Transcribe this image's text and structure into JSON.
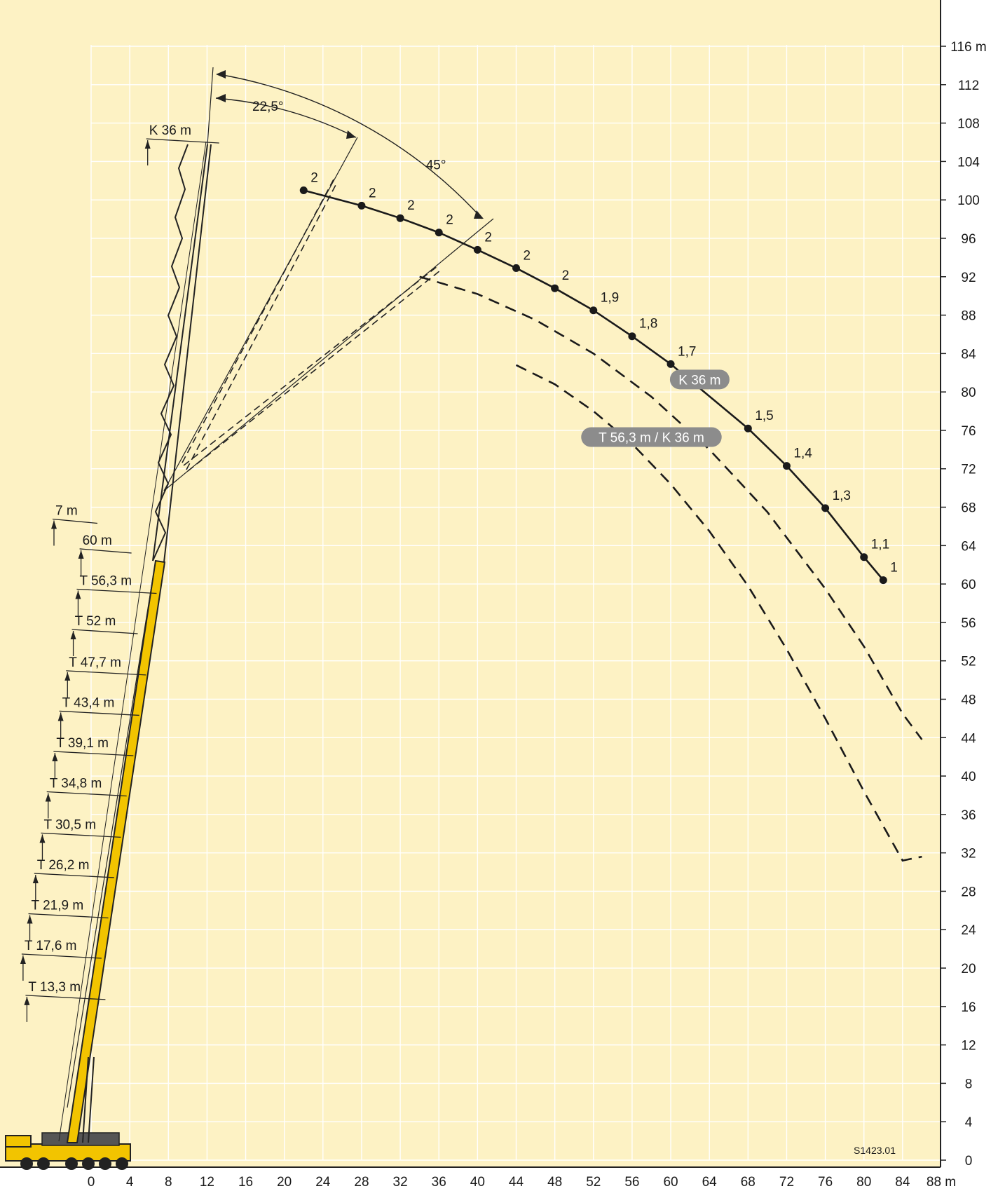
{
  "chart_data": {
    "type": "line",
    "title": "",
    "xlabel": "",
    "ylabel": "",
    "x_unit": "m",
    "y_unit": "m",
    "xlim": [
      0,
      88
    ],
    "ylim": [
      0,
      116
    ],
    "x_ticks": [
      0,
      4,
      8,
      12,
      16,
      20,
      24,
      28,
      32,
      36,
      40,
      44,
      48,
      52,
      56,
      60,
      64,
      68,
      72,
      76,
      80,
      84,
      88
    ],
    "y_ticks": [
      0,
      4,
      8,
      12,
      16,
      20,
      24,
      28,
      32,
      36,
      40,
      44,
      48,
      52,
      56,
      60,
      64,
      68,
      72,
      76,
      80,
      84,
      88,
      92,
      96,
      100,
      104,
      108,
      112,
      116
    ],
    "x_tick_labels": [
      "0",
      "4",
      "8",
      "12",
      "16",
      "20",
      "24",
      "28",
      "32",
      "36",
      "40",
      "44",
      "48",
      "52",
      "56",
      "60",
      "64",
      "68",
      "72",
      "76",
      "80",
      "84",
      "88 m"
    ],
    "y_tick_labels": [
      "0",
      "4",
      "8",
      "12",
      "16",
      "20",
      "24",
      "28",
      "32",
      "36",
      "40",
      "44",
      "48",
      "52",
      "56",
      "60",
      "64",
      "68",
      "72",
      "76",
      "80",
      "84",
      "88",
      "92",
      "96",
      "100",
      "104",
      "108",
      "112",
      "116 m"
    ],
    "grid": true,
    "background_color": "#fdf2c4",
    "series": [
      {
        "name": "K 36 m",
        "style": "solid",
        "points": [
          {
            "x": 22,
            "y": 101,
            "label": "2"
          },
          {
            "x": 28,
            "y": 99.4,
            "label": "2"
          },
          {
            "x": 32,
            "y": 98.1,
            "label": "2"
          },
          {
            "x": 36,
            "y": 96.6,
            "label": "2"
          },
          {
            "x": 40,
            "y": 94.8,
            "label": "2"
          },
          {
            "x": 44,
            "y": 92.9,
            "label": "2"
          },
          {
            "x": 48,
            "y": 90.8,
            "label": "2"
          },
          {
            "x": 52,
            "y": 88.5,
            "label": "1,9"
          },
          {
            "x": 56,
            "y": 85.8,
            "label": "1,8"
          },
          {
            "x": 60,
            "y": 82.9,
            "label": "1,7"
          },
          {
            "x": 68,
            "y": 76.2,
            "label": "1,5"
          },
          {
            "x": 72,
            "y": 72.3,
            "label": "1,4"
          },
          {
            "x": 76,
            "y": 67.9,
            "label": "1,3"
          },
          {
            "x": 80,
            "y": 62.8,
            "label": "1,1"
          },
          {
            "x": 82,
            "y": 60.4,
            "label": "1"
          }
        ]
      },
      {
        "name": "T 56,3 m / K 36 m",
        "style": "dashed",
        "points": [
          {
            "x": 34,
            "y": 92
          },
          {
            "x": 40,
            "y": 90.2
          },
          {
            "x": 46,
            "y": 87.5
          },
          {
            "x": 52,
            "y": 84
          },
          {
            "x": 58,
            "y": 79.5
          },
          {
            "x": 64,
            "y": 74
          },
          {
            "x": 70,
            "y": 67.5
          },
          {
            "x": 76,
            "y": 59.5
          },
          {
            "x": 80,
            "y": 53.5
          },
          {
            "x": 84,
            "y": 46.5
          },
          {
            "x": 86,
            "y": 43.8
          }
        ]
      },
      {
        "name": "",
        "style": "dashed",
        "points": [
          {
            "x": 44,
            "y": 82.8
          },
          {
            "x": 48,
            "y": 80.8
          },
          {
            "x": 52,
            "y": 78
          },
          {
            "x": 56,
            "y": 74.6
          },
          {
            "x": 60,
            "y": 70.4
          },
          {
            "x": 64,
            "y": 65.5
          },
          {
            "x": 68,
            "y": 59.8
          },
          {
            "x": 72,
            "y": 53.2
          },
          {
            "x": 76,
            "y": 46
          },
          {
            "x": 80,
            "y": 38.4
          },
          {
            "x": 84,
            "y": 31.2
          },
          {
            "x": 86,
            "y": 31.6
          }
        ]
      }
    ],
    "series_labels": [
      {
        "text": "K 36 m",
        "x": 63,
        "y": 81.3
      },
      {
        "text": "T 56,3 m / K 36 m",
        "x": 58,
        "y": 75.3
      }
    ],
    "boom_section_labels": [
      {
        "text": "T 13,3 m",
        "x": -6.5,
        "y": 17.6
      },
      {
        "text": "T 17,6 m",
        "x": -6.9,
        "y": 21.9
      },
      {
        "text": "T 21,9 m",
        "x": -6.2,
        "y": 26.1
      },
      {
        "text": "T 26,2 m",
        "x": -5.6,
        "y": 30.3
      },
      {
        "text": "T 30,5 m",
        "x": -4.9,
        "y": 34.5
      },
      {
        "text": "T 34,8 m",
        "x": -4.3,
        "y": 38.8
      },
      {
        "text": "T 39,1 m",
        "x": -3.6,
        "y": 43.0
      },
      {
        "text": "T 43,4 m",
        "x": -3.0,
        "y": 47.2
      },
      {
        "text": "T 47,7 m",
        "x": -2.3,
        "y": 51.4
      },
      {
        "text": "T 52 m",
        "x": -1.7,
        "y": 55.7
      },
      {
        "text": "T 56,3 m",
        "x": -1.2,
        "y": 59.9
      },
      {
        "text": "60 m",
        "x": -0.9,
        "y": 64.1
      },
      {
        "text": "7 m",
        "x": -3.7,
        "y": 67.2
      },
      {
        "text": "K 36  m",
        "x": 6.0,
        "y": 106.8
      }
    ],
    "angle_labels": [
      {
        "text": "22,5°",
        "x": 18.3,
        "y": 109.3
      },
      {
        "text": "45°",
        "x": 35.7,
        "y": 103.2
      }
    ],
    "code_label": "S1423.01"
  }
}
